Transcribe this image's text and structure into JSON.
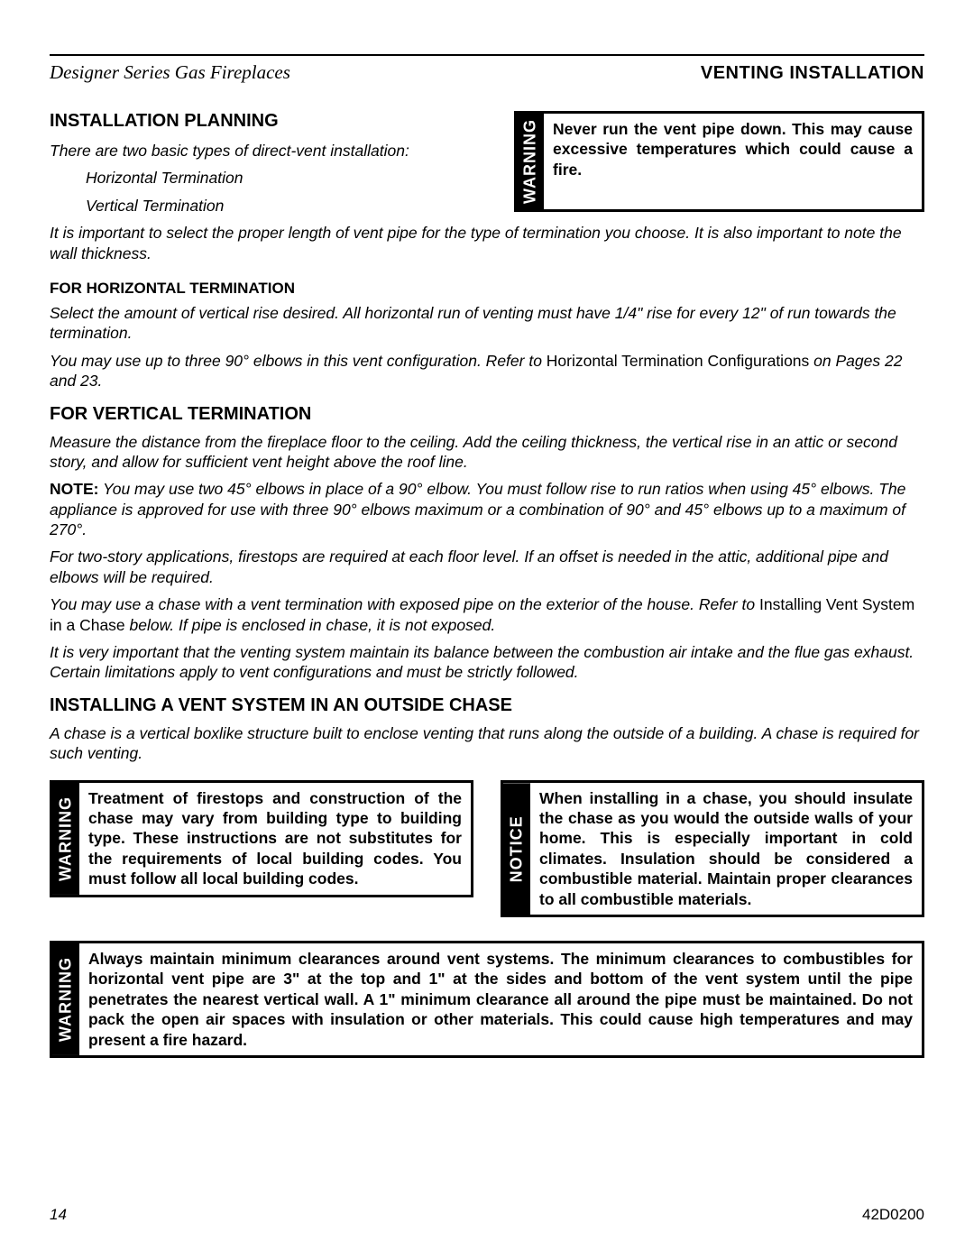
{
  "header": {
    "doc_title": "Designer Series Gas Fireplaces",
    "section": "VENTING INSTALLATION"
  },
  "planning": {
    "heading": "INSTALLATION PLANNING",
    "intro": "There are two basic types of direct-vent installation:",
    "types": [
      "Horizontal Termination",
      "Vertical Termination"
    ],
    "select_a": "It is important to select the proper length of vent pipe for the type of termination you choose. It is also important to note the wall thickness."
  },
  "warn_top": {
    "label": "WARNING",
    "text": "Never run the vent pipe down. This may cause excessive temperatures which could cause a fire."
  },
  "horiz": {
    "heading": "FOR HORIZONTAL TERMINATION",
    "p1": "Select the amount of vertical rise desired. All horizontal run of venting must have 1/4\" rise for every 12\" of run towards the termination.",
    "p2_a": "You may use up to three 90° elbows in this vent configuration. Refer to ",
    "p2_b": "Horizontal Termination Configurations",
    "p2_c": " on Pages 22 and 23."
  },
  "vert": {
    "heading": "FOR VERTICAL TERMINATION",
    "p1": "Measure the distance from the fireplace floor to the ceiling. Add the ceiling thickness, the vertical rise in an attic or second story, and allow for sufficient vent height above the roof line.",
    "note_label": "NOTE:",
    "note": " You may use two 45° elbows in place of a 90° elbow. You must follow rise to run ratios when using 45° elbows. The appliance is approved for use with three 90° elbows maximum or a combination of 90° and 45° elbows up to a maximum of 270°.",
    "p2": "For two-story applications, firestops are required at each floor level. If an offset is needed in the attic, additional pipe and elbows will be required.",
    "p3_a": "You may use a chase with a vent termination with exposed pipe on the exterior of the house. Refer to ",
    "p3_b": "Installing Vent System in a Chase",
    "p3_c": " below. If pipe is enclosed in chase, it is not exposed.",
    "p4": "It is very important that the venting system maintain its balance between the combustion air intake and the flue gas exhaust. Certain limitations apply to vent configurations and must be strictly followed."
  },
  "chase": {
    "heading": "INSTALLING A VENT SYSTEM IN AN OUTSIDE CHASE",
    "p1": "A chase is a vertical boxlike structure built to enclose venting that runs along the outside of a building. A chase is required for such venting."
  },
  "warn_left": {
    "label": "WARNING",
    "text": "Treatment of firestops and construction of the chase may vary from building type to building type. These instructions are not substitutes for the requirements of local building codes. You must follow all local building codes."
  },
  "notice_right": {
    "label": "NOTICE",
    "text": "When installing in a chase, you should insulate the chase as you would the outside walls of your home. This is especially important in cold climates. Insulation should be considered a combustible material. Maintain proper clearances to all combustible materials."
  },
  "warn_full": {
    "label": "WARNING",
    "text": "Always maintain minimum clearances around vent systems. The minimum clearances to combustibles for horizontal vent pipe are 3\" at the top and 1\" at the sides and bottom of the vent system until the pipe penetrates the nearest vertical wall. A 1\" minimum clearance all around the pipe must be maintained. Do not pack the open air spaces with insulation or other materials. This could cause high temperatures and may present a fire hazard."
  },
  "footer": {
    "page": "14",
    "code": "42D0200"
  }
}
